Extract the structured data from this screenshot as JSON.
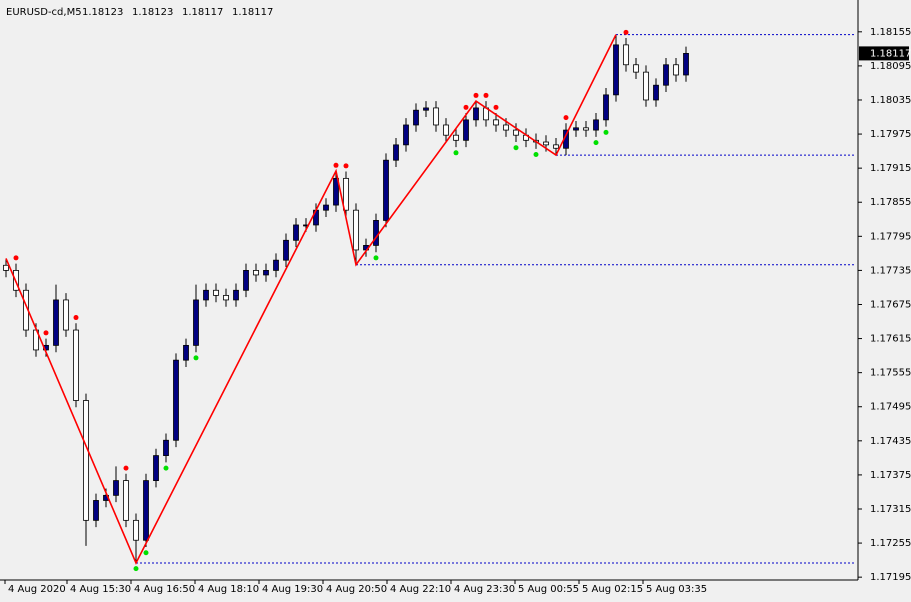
{
  "chart_data": {
    "type": "candlestick",
    "symbol": "EURUSD-cd,M5",
    "ohlc_header": [
      1.18123,
      1.18123,
      1.18117,
      1.18117
    ],
    "bull_color": "#000080",
    "bear_color": "#ffffff",
    "wick_color": "#000000",
    "ylim": [
      1.1719,
      1.18211
    ],
    "yticks": [
      1.18155,
      1.18095,
      1.18035,
      1.17975,
      1.17915,
      1.17855,
      1.17795,
      1.17735,
      1.17675,
      1.17615,
      1.17555,
      1.17495,
      1.17435,
      1.17375,
      1.17315,
      1.17255,
      1.17195
    ],
    "xlim": [
      0,
      85.2
    ],
    "xticks": [
      {
        "value": 0,
        "label": "4 Aug 2020"
      },
      {
        "value": 6.2,
        "label": "4 Aug 15:30"
      },
      {
        "value": 12.6,
        "label": "4 Aug 16:50"
      },
      {
        "value": 19,
        "label": "4 Aug 18:10"
      },
      {
        "value": 25.4,
        "label": "4 Aug 19:30"
      },
      {
        "value": 31.8,
        "label": "4 Aug 20:50"
      },
      {
        "value": 38.2,
        "label": "4 Aug 22:10"
      },
      {
        "value": 44.6,
        "label": "4 Aug 23:30"
      },
      {
        "value": 51,
        "label": "5 Aug 00:55"
      },
      {
        "value": 57.4,
        "label": "5 Aug 02:15"
      },
      {
        "value": 63.8,
        "label": "5 Aug 03:35"
      }
    ],
    "candles": [
      [
        1.17744,
        1.17756,
        1.17723,
        1.17735
      ],
      [
        1.17735,
        1.17747,
        1.17688,
        1.177
      ],
      [
        1.177,
        1.17712,
        1.17618,
        1.1763
      ],
      [
        1.1763,
        1.17642,
        1.17583,
        1.17595
      ],
      [
        1.17595,
        1.17615,
        1.17583,
        1.17603
      ],
      [
        1.17603,
        1.1771,
        1.17591,
        1.17683
      ],
      [
        1.17683,
        1.17695,
        1.17618,
        1.1763
      ],
      [
        1.1763,
        1.17642,
        1.17494,
        1.17506
      ],
      [
        1.17506,
        1.17518,
        1.1725,
        1.17295
      ],
      [
        1.17295,
        1.17342,
        1.17283,
        1.1733
      ],
      [
        1.1733,
        1.17351,
        1.17318,
        1.17339
      ],
      [
        1.17339,
        1.1739,
        1.17327,
        1.17365
      ],
      [
        1.17365,
        1.17377,
        1.17283,
        1.17295
      ],
      [
        1.17295,
        1.17307,
        1.1722,
        1.1726
      ],
      [
        1.1726,
        1.17377,
        1.17248,
        1.17365
      ],
      [
        1.17365,
        1.17421,
        1.17353,
        1.17409
      ],
      [
        1.17409,
        1.17448,
        1.17397,
        1.17436
      ],
      [
        1.17436,
        1.17589,
        1.17424,
        1.17577
      ],
      [
        1.17577,
        1.17615,
        1.17565,
        1.17603
      ],
      [
        1.17603,
        1.1771,
        1.17591,
        1.17683
      ],
      [
        1.17683,
        1.17712,
        1.17671,
        1.177
      ],
      [
        1.177,
        1.17712,
        1.17679,
        1.17691
      ],
      [
        1.17691,
        1.17703,
        1.17671,
        1.17683
      ],
      [
        1.17683,
        1.17712,
        1.17671,
        1.177
      ],
      [
        1.177,
        1.17747,
        1.17688,
        1.17735
      ],
      [
        1.17735,
        1.17747,
        1.17715,
        1.17727
      ],
      [
        1.17727,
        1.17747,
        1.17715,
        1.17735
      ],
      [
        1.17735,
        1.17765,
        1.17723,
        1.17753
      ],
      [
        1.17753,
        1.178,
        1.17741,
        1.17788
      ],
      [
        1.17788,
        1.17827,
        1.17776,
        1.17815
      ],
      [
        1.17815,
        1.17827,
        1.17803,
        1.17815
      ],
      [
        1.17815,
        1.17853,
        1.17803,
        1.17841
      ],
      [
        1.17841,
        1.17862,
        1.17829,
        1.1785
      ],
      [
        1.1785,
        1.1791,
        1.17838,
        1.17897
      ],
      [
        1.17897,
        1.17909,
        1.17829,
        1.17841
      ],
      [
        1.17841,
        1.17853,
        1.17745,
        1.17771
      ],
      [
        1.17771,
        1.17791,
        1.17759,
        1.17779
      ],
      [
        1.17779,
        1.17835,
        1.17767,
        1.17823
      ],
      [
        1.17823,
        1.17941,
        1.17811,
        1.17929
      ],
      [
        1.17929,
        1.17968,
        1.17917,
        1.17956
      ],
      [
        1.17956,
        1.18003,
        1.17944,
        1.17991
      ],
      [
        1.17991,
        1.18029,
        1.17979,
        1.18017
      ],
      [
        1.18017,
        1.18033,
        1.18005,
        1.18021
      ],
      [
        1.18021,
        1.18033,
        1.17979,
        1.17991
      ],
      [
        1.17991,
        1.18003,
        1.17961,
        1.17973
      ],
      [
        1.17973,
        1.17985,
        1.17952,
        1.17964
      ],
      [
        1.17964,
        1.18012,
        1.17952,
        1.18
      ],
      [
        1.18,
        1.18033,
        1.17988,
        1.18021
      ],
      [
        1.18021,
        1.18033,
        1.17988,
        1.18
      ],
      [
        1.18,
        1.18012,
        1.17979,
        1.17991
      ],
      [
        1.17991,
        1.18003,
        1.1797,
        1.17982
      ],
      [
        1.17982,
        1.17994,
        1.17961,
        1.17973
      ],
      [
        1.17973,
        1.17985,
        1.17952,
        1.17964
      ],
      [
        1.17964,
        1.17976,
        1.17949,
        1.17961
      ],
      [
        1.17961,
        1.17973,
        1.17944,
        1.17956
      ],
      [
        1.17956,
        1.17968,
        1.17938,
        1.1795
      ],
      [
        1.1795,
        1.17994,
        1.17938,
        1.17982
      ],
      [
        1.17982,
        1.17998,
        1.1797,
        1.17986
      ],
      [
        1.17986,
        1.17998,
        1.1797,
        1.17982
      ],
      [
        1.17982,
        1.18012,
        1.1797,
        1.18
      ],
      [
        1.18,
        1.18056,
        1.17988,
        1.18044
      ],
      [
        1.18044,
        1.1815,
        1.18032,
        1.18132
      ],
      [
        1.18132,
        1.18144,
        1.18085,
        1.18097
      ],
      [
        1.18097,
        1.18109,
        1.18072,
        1.18084
      ],
      [
        1.18084,
        1.18096,
        1.18023,
        1.18035
      ],
      [
        1.18035,
        1.18073,
        1.18023,
        1.18061
      ],
      [
        1.18061,
        1.18109,
        1.18049,
        1.18097
      ],
      [
        1.18097,
        1.18109,
        1.18067,
        1.18079
      ],
      [
        1.18079,
        1.18129,
        1.18067,
        1.18117
      ]
    ],
    "zigzag": {
      "color": "#ff0000",
      "x": [
        0,
        13,
        33,
        35,
        47,
        55,
        61
      ],
      "values": [
        1.17756,
        1.1722,
        1.1791,
        1.17745,
        1.18033,
        1.17938,
        1.1815
      ]
    },
    "levels": {
      "color": "#0000c8",
      "x": [
        61,
        55,
        35,
        13
      ],
      "values": [
        1.1815,
        1.17938,
        1.17745,
        1.1722
      ]
    },
    "up_dots": {
      "color": "#ff0000",
      "x": [
        1,
        4,
        7,
        12,
        33,
        34,
        46,
        47,
        48,
        49,
        56,
        62
      ],
      "values": [
        1.17757,
        1.17625,
        1.17652,
        1.17387,
        1.1792,
        1.17919,
        1.18022,
        1.18043,
        1.18043,
        1.18022,
        1.18004,
        1.18154
      ]
    },
    "down_dots": {
      "color": "#00e000",
      "x": [
        13,
        14,
        16,
        19,
        37,
        45,
        51,
        53,
        59,
        60
      ],
      "values": [
        1.1721,
        1.17238,
        1.17387,
        1.17581,
        1.17757,
        1.17942,
        1.17951,
        1.17939,
        1.1796,
        1.17978
      ]
    },
    "last_price": 1.18117
  }
}
